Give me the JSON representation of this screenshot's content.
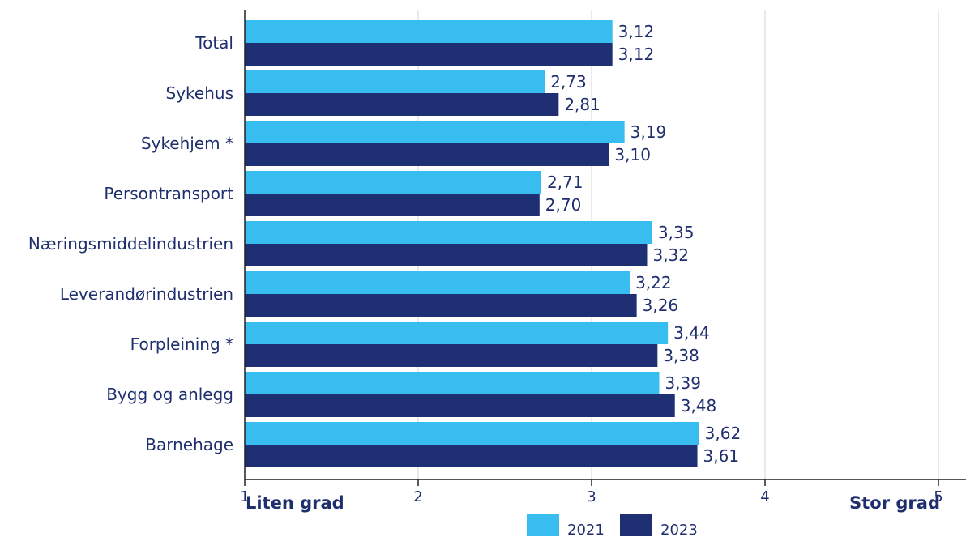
{
  "chart_data": {
    "type": "bar",
    "orientation": "horizontal",
    "categories": [
      "Total",
      "Sykehus",
      "Sykehjem *",
      "Persontransport",
      "Næringsmiddelindustrien",
      "Leverandørindustrien",
      "Forpleining *",
      "Bygg og anlegg",
      "Barnehage"
    ],
    "series": [
      {
        "name": "2021",
        "color": "#38bdf0",
        "values": [
          3.12,
          2.73,
          3.19,
          2.71,
          3.35,
          3.22,
          3.44,
          3.39,
          3.62
        ],
        "labels": [
          "3,12",
          "2,73",
          "3,19",
          "2,71",
          "3,35",
          "3,22",
          "3,44",
          "3,39",
          "3,62"
        ]
      },
      {
        "name": "2023",
        "color": "#1f2f74",
        "values": [
          3.12,
          2.81,
          3.1,
          2.7,
          3.32,
          3.26,
          3.38,
          3.48,
          3.61
        ],
        "labels": [
          "3,12",
          "2,81",
          "3,10",
          "2,70",
          "3,32",
          "3,26",
          "3,38",
          "3,48",
          "3,61"
        ]
      }
    ],
    "xlim": [
      1,
      5
    ],
    "xticks": [
      "1",
      "2",
      "3",
      "4",
      "5"
    ],
    "x_left_label": "Liten grad",
    "x_right_label": "Stor grad",
    "grid": true,
    "legend_position": "bottom"
  }
}
